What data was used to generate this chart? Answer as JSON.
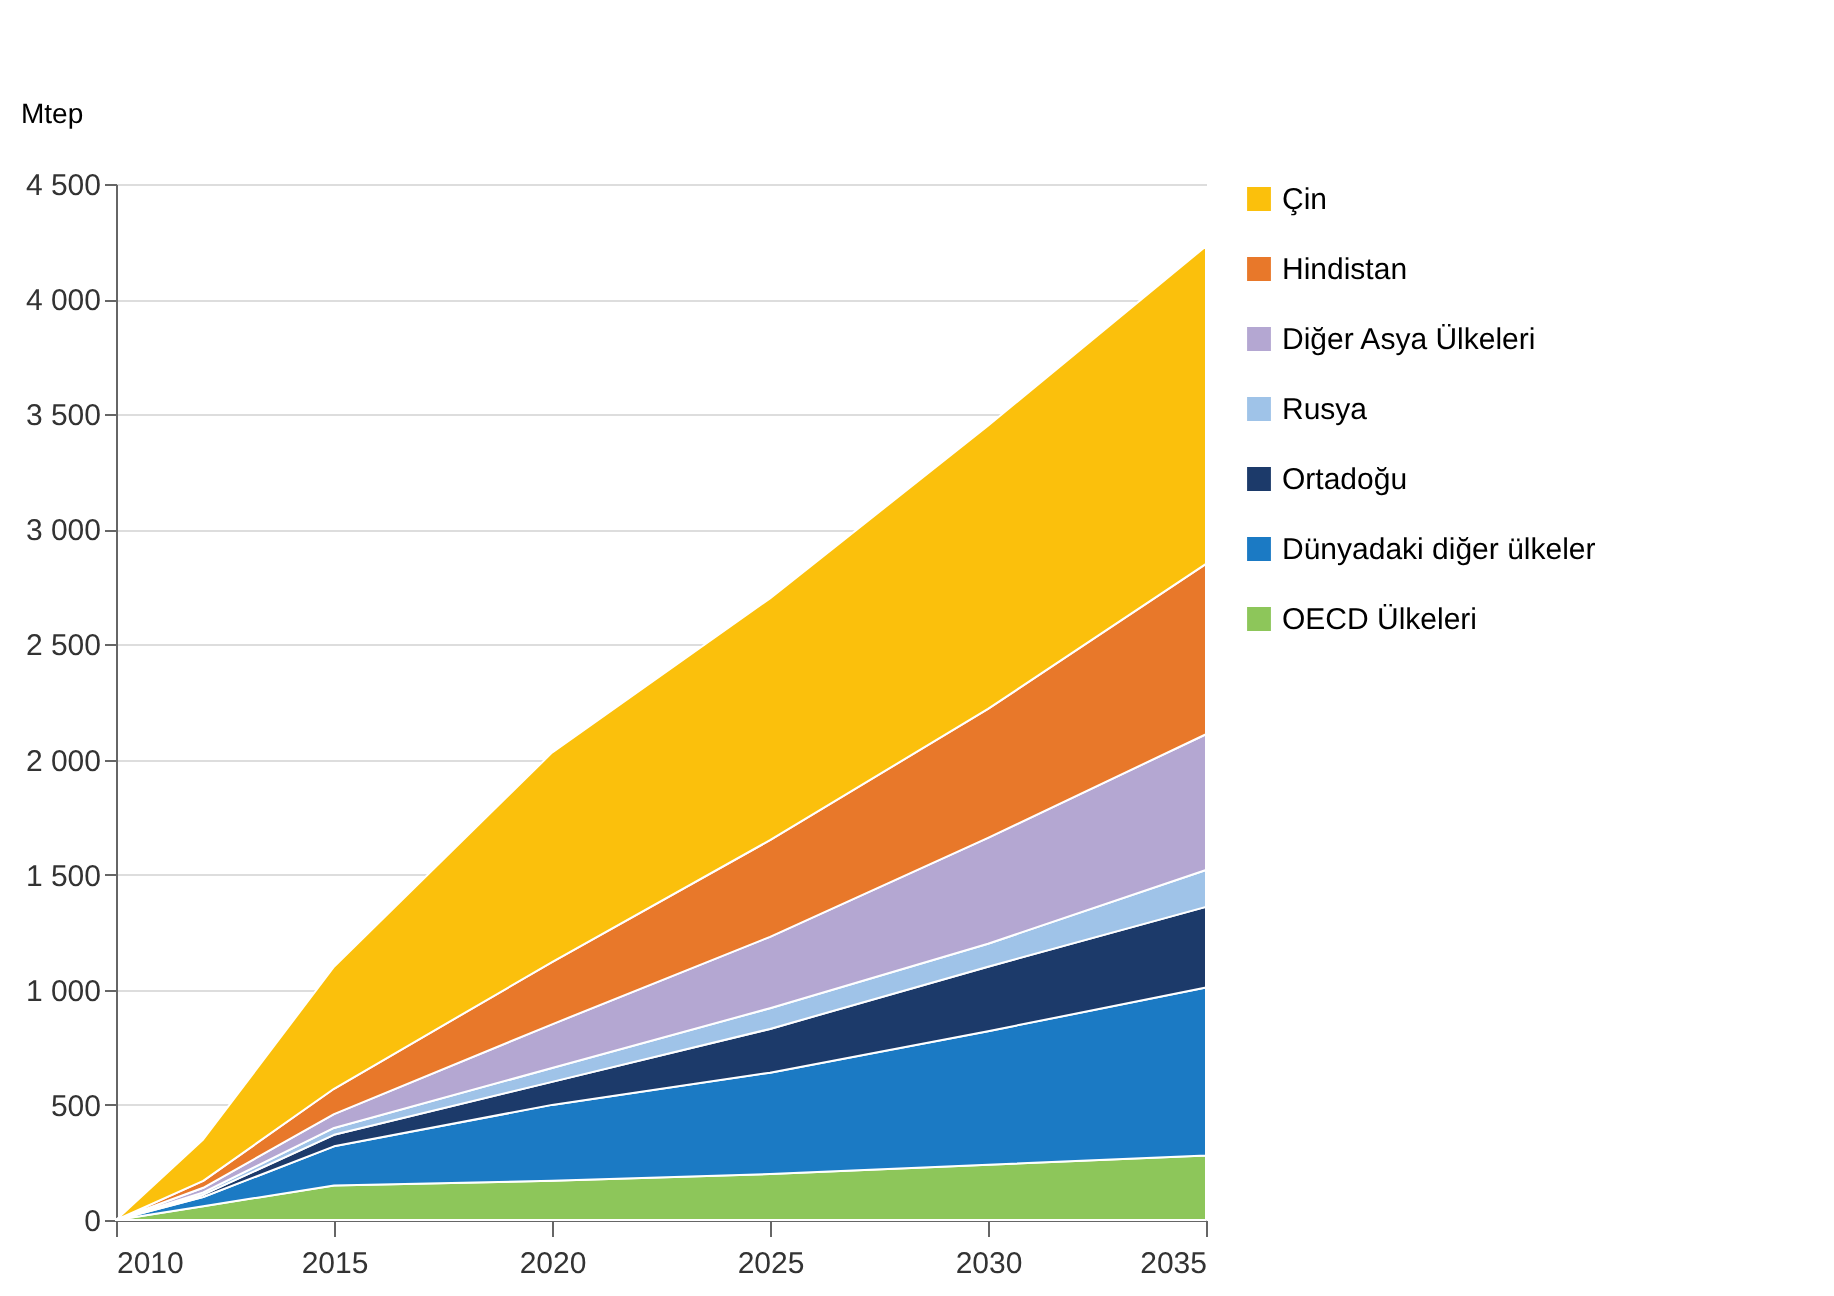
{
  "chart_data": {
    "type": "area",
    "ylabel": "Mtep",
    "stacked": true,
    "x": [
      2010,
      2012,
      2015,
      2020,
      2025,
      2030,
      2035
    ],
    "series": [
      {
        "name": "OECD Ülkeleri",
        "color": "#8dc65a",
        "values": [
          0,
          60,
          150,
          170,
          200,
          240,
          280
        ]
      },
      {
        "name": "Dünyadaki diğer ülkeler",
        "color": "#1b7ac4",
        "values": [
          0,
          40,
          170,
          330,
          440,
          580,
          730
        ]
      },
      {
        "name": "Ortadoğu",
        "color": "#1c3a6a",
        "values": [
          0,
          10,
          50,
          100,
          190,
          280,
          350
        ]
      },
      {
        "name": "Rusya",
        "color": "#9fc3e8",
        "values": [
          0,
          10,
          30,
          60,
          90,
          100,
          160
        ]
      },
      {
        "name": "Diğer Asya Ülkeleri",
        "color": "#b4a7d2",
        "values": [
          0,
          20,
          60,
          190,
          310,
          460,
          590
        ]
      },
      {
        "name": "Hindistan",
        "color": "#e8782a",
        "values": [
          0,
          30,
          110,
          270,
          420,
          560,
          740
        ]
      },
      {
        "name": "Çin",
        "color": "#fbc00c",
        "values": [
          0,
          180,
          530,
          910,
          1050,
          1230,
          1380
        ]
      }
    ],
    "xlim": [
      2010,
      2035
    ],
    "xticks": [
      2010,
      2015,
      2020,
      2025,
      2030,
      2035
    ],
    "ylim": [
      0,
      4500
    ],
    "yticks": [
      0,
      500,
      {
        "value": 1000,
        "label": "1 000"
      },
      {
        "value": 1500,
        "label": "1 500"
      },
      {
        "value": 2000,
        "label": "2 000"
      },
      {
        "value": 2500,
        "label": "2 500"
      },
      {
        "value": 3000,
        "label": "3 000"
      },
      {
        "value": 3500,
        "label": "3 500"
      },
      {
        "value": 4000,
        "label": "4 000"
      },
      {
        "value": 4500,
        "label": "4 500"
      }
    ],
    "grid": "y",
    "legend": "right"
  }
}
